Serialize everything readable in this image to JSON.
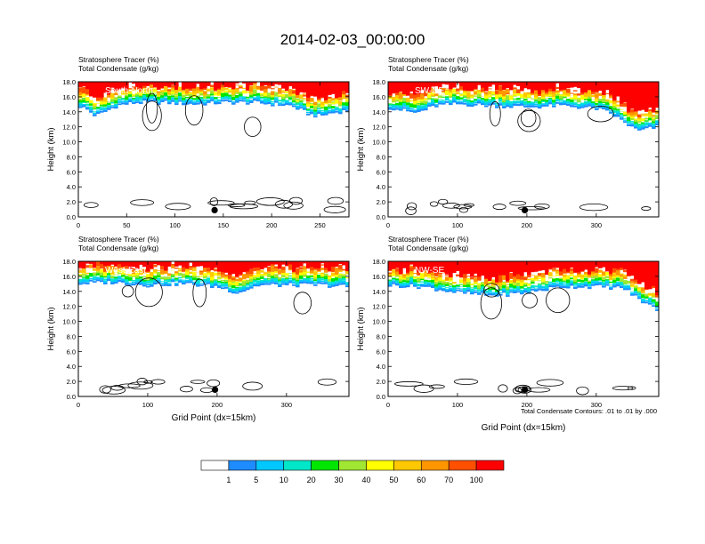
{
  "title": "2014-02-03_00:00:00",
  "colors": {
    "levels": [
      "#ffffff",
      "#1e8cff",
      "#00c8ff",
      "#00e6c8",
      "#00e600",
      "#a0e632",
      "#ffff00",
      "#ffc800",
      "#ff9600",
      "#ff5000",
      "#ff0000"
    ],
    "contour": "#000000",
    "marker": "#000000"
  },
  "colorbar": {
    "labels": [
      "1",
      "5",
      "10",
      "20",
      "30",
      "40",
      "50",
      "60",
      "70",
      "100"
    ]
  },
  "footnote": "Total Condensate Contours: .01 to .01 by .000",
  "chart_data": [
    {
      "type": "heatmap",
      "id": "south-north",
      "panel_label": "South-North",
      "header1": "Stratosphere Tracer   (%)",
      "header2": "Total Condensate   (g/kg)",
      "ylabel": "Height (km)",
      "xlabel": "",
      "xlim": [
        0,
        280
      ],
      "ylim": [
        0,
        18
      ],
      "xticks": [
        0,
        50,
        100,
        150,
        200,
        250
      ],
      "yticks": [
        "0.0",
        "2.0",
        "4.0",
        "6.0",
        "8.0",
        "10.0",
        "12.0",
        "14.0",
        "16.0",
        "18.0"
      ],
      "marker_x": 141,
      "marker_y": 0.9,
      "tracer_base_km": [
        [
          0,
          14.8
        ],
        [
          10,
          14.2
        ],
        [
          18,
          13.4
        ],
        [
          25,
          13.8
        ],
        [
          40,
          14.8
        ],
        [
          60,
          15.2
        ],
        [
          90,
          15.2
        ],
        [
          120,
          15.0
        ],
        [
          150,
          15.2
        ],
        [
          180,
          15.2
        ],
        [
          200,
          15.0
        ],
        [
          220,
          14.8
        ],
        [
          240,
          13.6
        ],
        [
          250,
          13.4
        ],
        [
          262,
          13.8
        ],
        [
          280,
          14.2
        ]
      ]
    },
    {
      "type": "heatmap",
      "id": "sw-ne",
      "panel_label": "SW-NE",
      "header1": "Stratosphere Tracer   (%)",
      "header2": "Total Condensate   (g/kg)",
      "ylabel": "Height (km)",
      "xlabel": "",
      "xlim": [
        0,
        390
      ],
      "ylim": [
        0,
        18
      ],
      "xticks": [
        0,
        100,
        200,
        300
      ],
      "yticks": [
        "0.0",
        "2.0",
        "4.0",
        "6.0",
        "8.0",
        "10.0",
        "12.0",
        "14.0",
        "16.0",
        "18.0"
      ],
      "marker_x": 197,
      "marker_y": 0.9,
      "tracer_base_km": [
        [
          0,
          14.6
        ],
        [
          20,
          14.2
        ],
        [
          40,
          13.8
        ],
        [
          70,
          14.8
        ],
        [
          100,
          15.0
        ],
        [
          150,
          14.8
        ],
        [
          200,
          14.6
        ],
        [
          250,
          14.8
        ],
        [
          300,
          14.4
        ],
        [
          320,
          13.8
        ],
        [
          340,
          12.6
        ],
        [
          360,
          11.4
        ],
        [
          390,
          12.0
        ]
      ]
    },
    {
      "type": "heatmap",
      "id": "west-east",
      "panel_label": "West-East",
      "header1": "Stratosphere Tracer   (%)",
      "header2": "Total Condensate   (g/kg)",
      "ylabel": "Height (km)",
      "xlabel": "Grid Point (dx=15km)",
      "xlim": [
        0,
        390
      ],
      "ylim": [
        0,
        18
      ],
      "xticks": [
        0,
        100,
        200,
        300
      ],
      "yticks": [
        "0.0",
        "2.0",
        "4.0",
        "6.0",
        "8.0",
        "10.0",
        "12.0",
        "14.0",
        "16.0",
        "18.0"
      ],
      "marker_x": 197,
      "marker_y": 0.9,
      "tracer_base_km": [
        [
          0,
          15.0
        ],
        [
          50,
          15.2
        ],
        [
          100,
          14.8
        ],
        [
          150,
          15.0
        ],
        [
          200,
          14.6
        ],
        [
          230,
          13.8
        ],
        [
          260,
          14.8
        ],
        [
          300,
          14.8
        ],
        [
          350,
          14.8
        ],
        [
          390,
          14.6
        ]
      ]
    },
    {
      "type": "heatmap",
      "id": "nw-se",
      "panel_label": "NW-SE",
      "header1": "Stratosphere Tracer   (%)",
      "header2": "Total Condensate   (g/kg)",
      "ylabel": "Height (km)",
      "xlabel": "Grid Point (dx=15km)",
      "xlim": [
        0,
        390
      ],
      "ylim": [
        0,
        18
      ],
      "xticks": [
        0,
        100,
        200,
        300
      ],
      "yticks": [
        "0.0",
        "2.0",
        "4.0",
        "6.0",
        "8.0",
        "10.0",
        "12.0",
        "14.0",
        "16.0",
        "18.0"
      ],
      "marker_x": 197,
      "marker_y": 0.9,
      "tracer_base_km": [
        [
          0,
          14.8
        ],
        [
          50,
          14.6
        ],
        [
          100,
          13.8
        ],
        [
          150,
          13.4
        ],
        [
          200,
          13.8
        ],
        [
          250,
          14.6
        ],
        [
          300,
          14.6
        ],
        [
          340,
          14.4
        ],
        [
          360,
          13.0
        ],
        [
          375,
          12.2
        ],
        [
          390,
          11.4
        ]
      ]
    }
  ]
}
